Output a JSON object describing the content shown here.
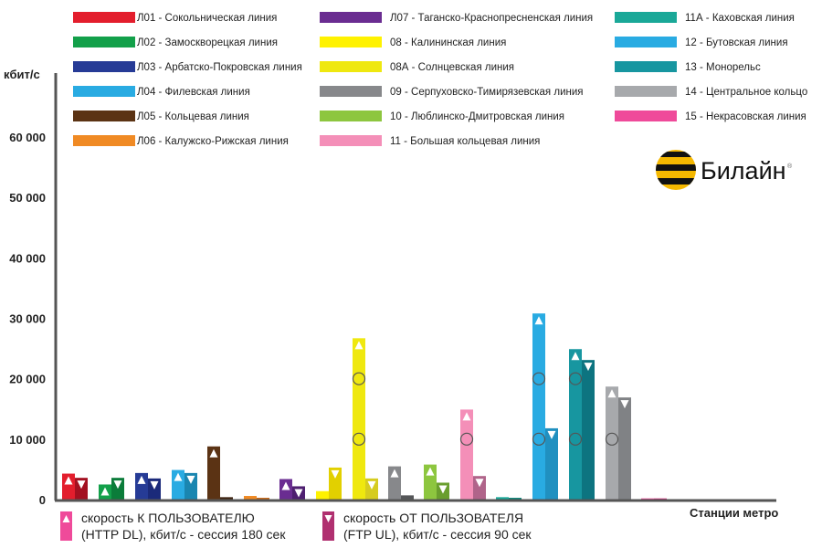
{
  "chart_data": {
    "type": "bar",
    "ylabel": "кбит/с",
    "xlabel": "Станции метро",
    "ylim": [
      0,
      65000
    ],
    "yticks": [
      0,
      10000,
      20000,
      30000,
      40000,
      50000,
      60000
    ],
    "ytick_labels": [
      "0",
      "10 000",
      "20 000",
      "30 000",
      "40 000",
      "50 000",
      "60 000"
    ],
    "grid": false,
    "marker_levels": [
      10000,
      20000
    ],
    "series": [
      {
        "name": "скорость К ПОЛЬЗОВАТЕЛЮ (HTTP DL), кбит/с - сессия 180 сек",
        "marker": "triangle-up",
        "color": "#ef4a9a"
      },
      {
        "name": "скорость ОТ ПОЛЬЗОВАТЕЛЯ (FTP UL), кбит/с - сессия 90 сек",
        "marker": "triangle-down",
        "color": "#b03070"
      }
    ],
    "lines": [
      {
        "label": "Л01 - Сокольническая линия",
        "dl": 4300,
        "ul": 3600,
        "color": "#e31e2d",
        "color2": "#a31020"
      },
      {
        "label": "Л02 - Замоскворецкая линия",
        "dl": 2500,
        "ul": 3600,
        "color": "#13a04a",
        "color2": "#0b7c3a"
      },
      {
        "label": "Л03 - Арбатско-Покровская линия",
        "dl": 4400,
        "ul": 3500,
        "color": "#263b96",
        "color2": "#1b2a7a"
      },
      {
        "label": "Л04 - Филевская линия",
        "dl": 4900,
        "ul": 4400,
        "color": "#29abe2",
        "color2": "#1a86b0"
      },
      {
        "label": "Л05 - Кольцевая линия",
        "dl": 8800,
        "ul": 400,
        "color": "#5b3314",
        "color2": "#3d2210"
      },
      {
        "label": "Л06 - Калужско-Рижская линия",
        "dl": 600,
        "ul": 300,
        "color": "#f08a24",
        "color2": "#c86a1a"
      },
      {
        "label": "Л07 - Таганско-Краснопресненская линия",
        "dl": 3400,
        "ul": 2200,
        "color": "#6a2d91",
        "color2": "#4e1f70"
      },
      {
        "label": "08 - Калининская линия",
        "dl": 1400,
        "ul": 5300,
        "color": "#fff200",
        "color2": "#e2d000"
      },
      {
        "label": "08А - Солнцевская линия",
        "dl": 26700,
        "ul": 3500,
        "color": "#efe80f",
        "color2": "#d6cc20"
      },
      {
        "label": "09 - Серпуховско-Тимирязевская линия",
        "dl": 5500,
        "ul": 700,
        "color": "#87888b",
        "color2": "#555659"
      },
      {
        "label": "10 - Люблинско-Дмитровская линия",
        "dl": 5800,
        "ul": 2800,
        "color": "#8dc63f",
        "color2": "#6a9e2e"
      },
      {
        "label": "11 - Большая кольцевая линия",
        "dl": 14900,
        "ul": 3900,
        "color": "#f48fb8",
        "color2": "#b0648a"
      },
      {
        "label": "11А - Каховская линия",
        "dl": 400,
        "ul": 300,
        "color": "#1aa898",
        "color2": "#11877a"
      },
      {
        "label": "12 - Бутовская линия",
        "dl": 30800,
        "ul": 11800,
        "color": "#29abe2",
        "color2": "#2090c0"
      },
      {
        "label": "13 - Монорельс",
        "dl": 24900,
        "ul": 23100,
        "color": "#1796a0",
        "color2": "#0d7480"
      },
      {
        "label": "14 - Центральное кольцо",
        "dl": 18700,
        "ul": 16900,
        "color": "#a7a9ac",
        "color2": "#808285"
      },
      {
        "label": "15 - Некрасовская линия",
        "dl": 200,
        "ul": 200,
        "color": "#ef4a9a",
        "color2": "#d03080"
      }
    ]
  },
  "legend_bottom": {
    "dl_line1": "скорость К ПОЛЬЗОВАТЕЛЮ",
    "dl_line2": "(HTTP DL), кбит/с - сессия 180 сек",
    "ul_line1": "скорость ОТ ПОЛЬЗОВАТЕЛЯ",
    "ul_line2": "(FTP UL), кбит/с - сессия 90 сек"
  },
  "logo": {
    "text": "Билайн",
    "mark": "®"
  }
}
